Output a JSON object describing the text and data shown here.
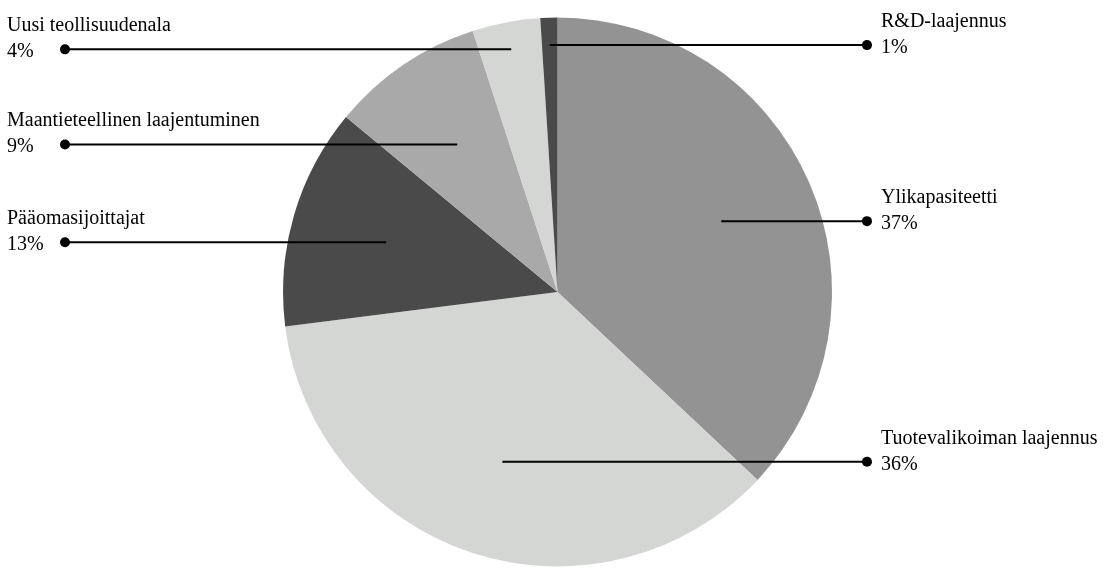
{
  "chart_data": {
    "type": "pie",
    "categories": [
      "Ylikapasiteetti",
      "Tuotevalikoiman laajennus",
      "Pääomasijoittajat",
      "Maantieteellinen laajentuminen",
      "Uusi teollisuudenala",
      "R&D-laajennus"
    ],
    "values": [
      37,
      36,
      13,
      9,
      4,
      1
    ],
    "value_labels": [
      "37%",
      "36%",
      "13%",
      "9%",
      "4%",
      "1%"
    ],
    "colors": [
      "#939393",
      "#d3d6d3",
      "#4a4a4a",
      "#a9a9a9",
      "#d3d6d3",
      "#4a4a4a"
    ]
  }
}
